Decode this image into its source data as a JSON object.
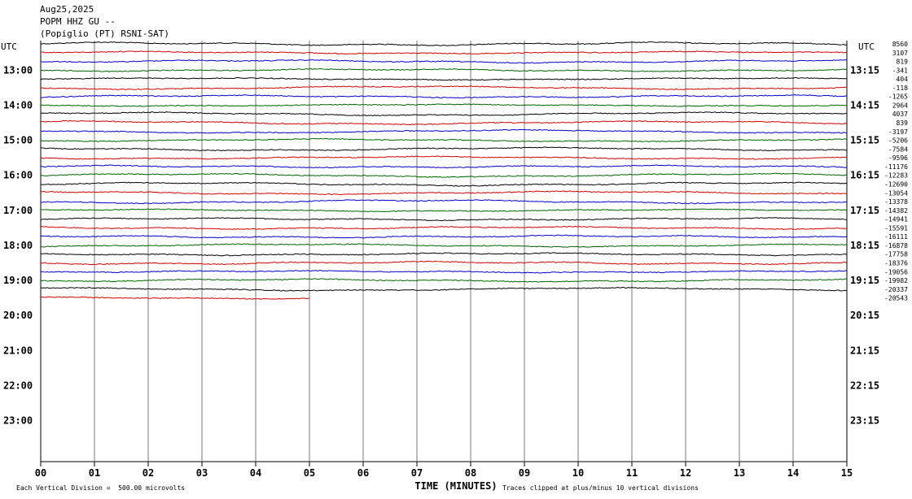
{
  "header": {
    "date": "Aug25,2025",
    "station": "POPM HHZ GU --",
    "location": "(Popiglio (PT) RSNI-SAT)"
  },
  "chart_data": {
    "type": "line",
    "title": "POPM HHZ GU --",
    "xlabel": "TIME (MINUTES)",
    "x_ticks": [
      "00",
      "01",
      "02",
      "03",
      "04",
      "05",
      "06",
      "07",
      "08",
      "09",
      "10",
      "11",
      "12",
      "13",
      "14",
      "15"
    ],
    "xlim": [
      0,
      15
    ],
    "left_axis_label": "UTC",
    "right_axis_label": "UTC",
    "left_hour_labels": [
      "13:00",
      "14:00",
      "15:00",
      "16:00",
      "17:00",
      "18:00",
      "19:00",
      "20:00",
      "21:00",
      "22:00",
      "23:00"
    ],
    "right_hour_labels": [
      "13:15",
      "14:15",
      "15:15",
      "16:15",
      "17:15",
      "18:15",
      "19:15",
      "20:15",
      "21:15",
      "22:15",
      "23:15"
    ],
    "first_row_hour_index": 12,
    "trace_colors": [
      "#000000",
      "#d40000",
      "#0000d4",
      "#006400"
    ],
    "trace_offsets": [
      "8560",
      "3107",
      "819",
      "-341",
      "404",
      "-118",
      "-1265",
      "2964",
      "4037",
      "839",
      "-3197",
      "-5206",
      "-7584",
      "-9596",
      "-11176",
      "-12283",
      "-12690",
      "-13054",
      "-13378",
      "-14382",
      "-14941",
      "-15591",
      "-16111",
      "-16878",
      "-17758",
      "-18376",
      "-19056",
      "-19982",
      "-20337",
      "-20543"
    ],
    "last_trace_end_minute": 5,
    "grid": true
  },
  "footer": {
    "scale_note": "Each Vertical Division =  500.00 microvolts",
    "xlabel": "TIME (MINUTES)",
    "clip_note": "Traces clipped at plus/minus 10 vertical divisions"
  }
}
